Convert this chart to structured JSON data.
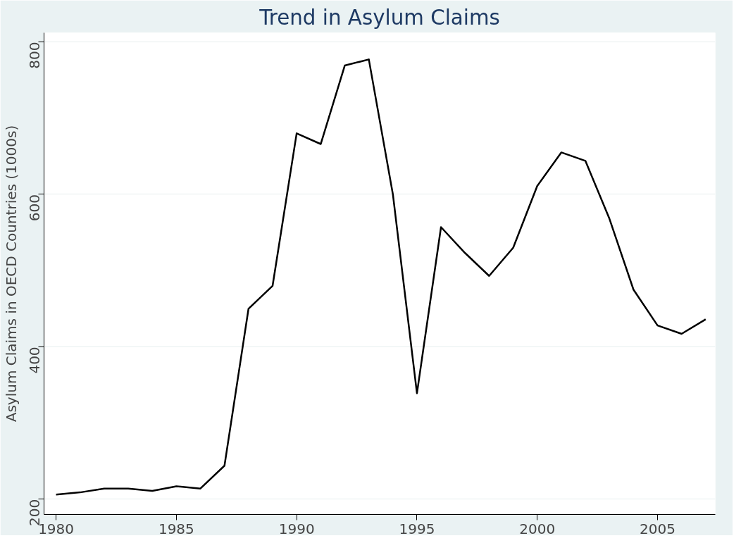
{
  "chart_data": {
    "type": "line",
    "title": "Trend in Asylum Claims",
    "ylabel": "Asylum Claims in OECD Countries (1000s)",
    "x": [
      1980,
      1981,
      1982,
      1983,
      1984,
      1985,
      1986,
      1987,
      1988,
      1989,
      1990,
      1991,
      1992,
      1993,
      1994,
      1995,
      1996,
      1997,
      1998,
      1999,
      2000,
      2001,
      2002,
      2003,
      2004,
      2005,
      2006,
      2007
    ],
    "series": [
      {
        "color": "#000000",
        "values": [
          206,
          209,
          214,
          214,
          211,
          217,
          214,
          244,
          450,
          480,
          680,
          666,
          769,
          777,
          600,
          339,
          557,
          523,
          493,
          530,
          611,
          655,
          644,
          568,
          475,
          428,
          417,
          436
        ]
      }
    ],
    "xlim": [
      1979.5,
      2007.4
    ],
    "ylim": [
      180,
      812
    ],
    "xticks": [
      1980,
      1985,
      1990,
      1995,
      2000,
      2005
    ],
    "yticks": [
      200,
      400,
      600,
      800
    ],
    "grid": "y"
  }
}
